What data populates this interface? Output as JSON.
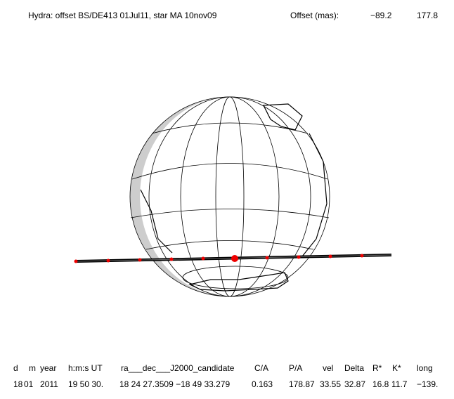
{
  "header": {
    "title": "Hydra: offset BS/DE413 01Jul11, star MA 10nov09",
    "offset_label": "Offset (mas):",
    "offset_x": "−89.2",
    "offset_y": "177.8"
  },
  "table": {
    "header": [
      "d",
      "m",
      "year",
      "h:m:s UT",
      "ra___dec___J2000_candidate",
      "C/A",
      "P/A",
      "vel",
      "Delta",
      "R*",
      "K*",
      "long"
    ],
    "row": [
      "18",
      "01",
      "2011",
      "19 50 30.",
      "18 24 27.3509 −18 49 33.279",
      "0.163",
      "178.87",
      "33.55",
      "32.87",
      "16.8",
      "11.7",
      "−139."
    ]
  }
}
